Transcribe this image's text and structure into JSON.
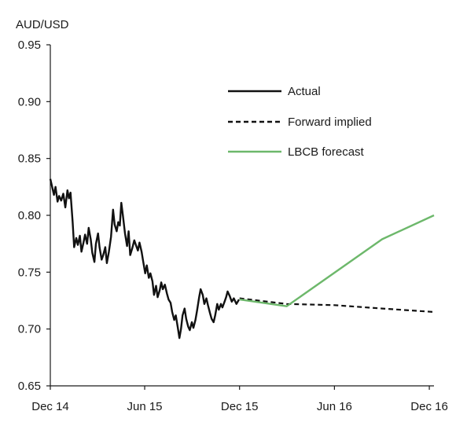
{
  "chart_data": {
    "type": "line",
    "ylabel": "AUD/USD",
    "ylim": [
      0.65,
      0.95
    ],
    "yticks": [
      "0.95",
      "0.90",
      "0.85",
      "0.80",
      "0.75",
      "0.70",
      "0.65"
    ],
    "ytick_values": [
      0.95,
      0.9,
      0.85,
      0.8,
      0.75,
      0.7,
      0.65
    ],
    "xlim": [
      "2014-12-01",
      "2016-12-10"
    ],
    "xticks": [
      {
        "label": "Dec 14",
        "date": "2014-12-01"
      },
      {
        "label": "Jun 15",
        "date": "2015-06-01"
      },
      {
        "label": "Dec 15",
        "date": "2015-12-01"
      },
      {
        "label": "Jun 16",
        "date": "2016-06-01"
      },
      {
        "label": "Dec 16",
        "date": "2016-12-01"
      }
    ],
    "grid": false,
    "legend_position": "top-right",
    "series": [
      {
        "name": "Actual",
        "color": "#111111",
        "dash": "solid",
        "points": [
          [
            "2014-12-01",
            0.832
          ],
          [
            "2014-12-04",
            0.826
          ],
          [
            "2014-12-08",
            0.818
          ],
          [
            "2014-12-11",
            0.825
          ],
          [
            "2014-12-15",
            0.812
          ],
          [
            "2014-12-18",
            0.817
          ],
          [
            "2014-12-22",
            0.813
          ],
          [
            "2014-12-26",
            0.819
          ],
          [
            "2014-12-30",
            0.807
          ],
          [
            "2015-01-03",
            0.822
          ],
          [
            "2015-01-06",
            0.815
          ],
          [
            "2015-01-09",
            0.82
          ],
          [
            "2015-01-13",
            0.794
          ],
          [
            "2015-01-16",
            0.772
          ],
          [
            "2015-01-20",
            0.78
          ],
          [
            "2015-01-23",
            0.774
          ],
          [
            "2015-01-27",
            0.782
          ],
          [
            "2015-01-30",
            0.768
          ],
          [
            "2015-02-03",
            0.776
          ],
          [
            "2015-02-06",
            0.783
          ],
          [
            "2015-02-10",
            0.775
          ],
          [
            "2015-02-13",
            0.789
          ],
          [
            "2015-02-17",
            0.779
          ],
          [
            "2015-02-20",
            0.767
          ],
          [
            "2015-02-24",
            0.759
          ],
          [
            "2015-02-27",
            0.775
          ],
          [
            "2015-03-03",
            0.784
          ],
          [
            "2015-03-06",
            0.772
          ],
          [
            "2015-03-10",
            0.761
          ],
          [
            "2015-03-13",
            0.765
          ],
          [
            "2015-03-17",
            0.772
          ],
          [
            "2015-03-20",
            0.758
          ],
          [
            "2015-03-24",
            0.768
          ],
          [
            "2015-03-28",
            0.781
          ],
          [
            "2015-04-01",
            0.805
          ],
          [
            "2015-04-04",
            0.792
          ],
          [
            "2015-04-08",
            0.786
          ],
          [
            "2015-04-11",
            0.794
          ],
          [
            "2015-04-14",
            0.791
          ],
          [
            "2015-04-17",
            0.811
          ],
          [
            "2015-04-20",
            0.8
          ],
          [
            "2015-04-24",
            0.784
          ],
          [
            "2015-04-28",
            0.773
          ],
          [
            "2015-05-01",
            0.786
          ],
          [
            "2015-05-04",
            0.765
          ],
          [
            "2015-05-08",
            0.771
          ],
          [
            "2015-05-12",
            0.778
          ],
          [
            "2015-05-15",
            0.774
          ],
          [
            "2015-05-19",
            0.769
          ],
          [
            "2015-05-22",
            0.776
          ],
          [
            "2015-05-26",
            0.768
          ],
          [
            "2015-05-29",
            0.76
          ],
          [
            "2015-06-02",
            0.749
          ],
          [
            "2015-06-05",
            0.756
          ],
          [
            "2015-06-09",
            0.745
          ],
          [
            "2015-06-12",
            0.749
          ],
          [
            "2015-06-16",
            0.742
          ],
          [
            "2015-06-19",
            0.73
          ],
          [
            "2015-06-23",
            0.738
          ],
          [
            "2015-06-26",
            0.728
          ],
          [
            "2015-06-30",
            0.734
          ],
          [
            "2015-07-03",
            0.741
          ],
          [
            "2015-07-06",
            0.735
          ],
          [
            "2015-07-10",
            0.739
          ],
          [
            "2015-07-14",
            0.731
          ],
          [
            "2015-07-17",
            0.726
          ],
          [
            "2015-07-21",
            0.723
          ],
          [
            "2015-07-24",
            0.715
          ],
          [
            "2015-07-28",
            0.708
          ],
          [
            "2015-07-31",
            0.712
          ],
          [
            "2015-08-04",
            0.701
          ],
          [
            "2015-08-07",
            0.692
          ],
          [
            "2015-08-10",
            0.7
          ],
          [
            "2015-08-13",
            0.712
          ],
          [
            "2015-08-17",
            0.718
          ],
          [
            "2015-08-20",
            0.709
          ],
          [
            "2015-08-24",
            0.702
          ],
          [
            "2015-08-27",
            0.699
          ],
          [
            "2015-08-31",
            0.706
          ],
          [
            "2015-09-03",
            0.701
          ],
          [
            "2015-09-07",
            0.708
          ],
          [
            "2015-09-10",
            0.716
          ],
          [
            "2015-09-14",
            0.728
          ],
          [
            "2015-09-17",
            0.735
          ],
          [
            "2015-09-21",
            0.73
          ],
          [
            "2015-09-24",
            0.722
          ],
          [
            "2015-09-28",
            0.727
          ],
          [
            "2015-10-01",
            0.721
          ],
          [
            "2015-10-05",
            0.714
          ],
          [
            "2015-10-08",
            0.709
          ],
          [
            "2015-10-12",
            0.706
          ],
          [
            "2015-10-15",
            0.712
          ],
          [
            "2015-10-19",
            0.722
          ],
          [
            "2015-10-22",
            0.717
          ],
          [
            "2015-10-26",
            0.722
          ],
          [
            "2015-10-29",
            0.719
          ],
          [
            "2015-11-02",
            0.724
          ],
          [
            "2015-11-05",
            0.728
          ],
          [
            "2015-11-08",
            0.733
          ],
          [
            "2015-11-12",
            0.729
          ],
          [
            "2015-11-16",
            0.724
          ],
          [
            "2015-11-20",
            0.727
          ],
          [
            "2015-11-25",
            0.722
          ],
          [
            "2015-11-30",
            0.726
          ]
        ]
      },
      {
        "name": "Forward implied",
        "color": "#111111",
        "dash": "dashed",
        "points": [
          [
            "2015-12-01",
            0.727
          ],
          [
            "2016-03-01",
            0.722
          ],
          [
            "2016-06-01",
            0.721
          ],
          [
            "2016-09-01",
            0.718
          ],
          [
            "2016-12-10",
            0.715
          ]
        ]
      },
      {
        "name": "LBCB forecast",
        "color": "#6db86b",
        "dash": "solid",
        "points": [
          [
            "2015-12-01",
            0.726
          ],
          [
            "2016-03-01",
            0.72
          ],
          [
            "2016-09-01",
            0.779
          ],
          [
            "2016-12-10",
            0.8
          ]
        ]
      }
    ]
  }
}
